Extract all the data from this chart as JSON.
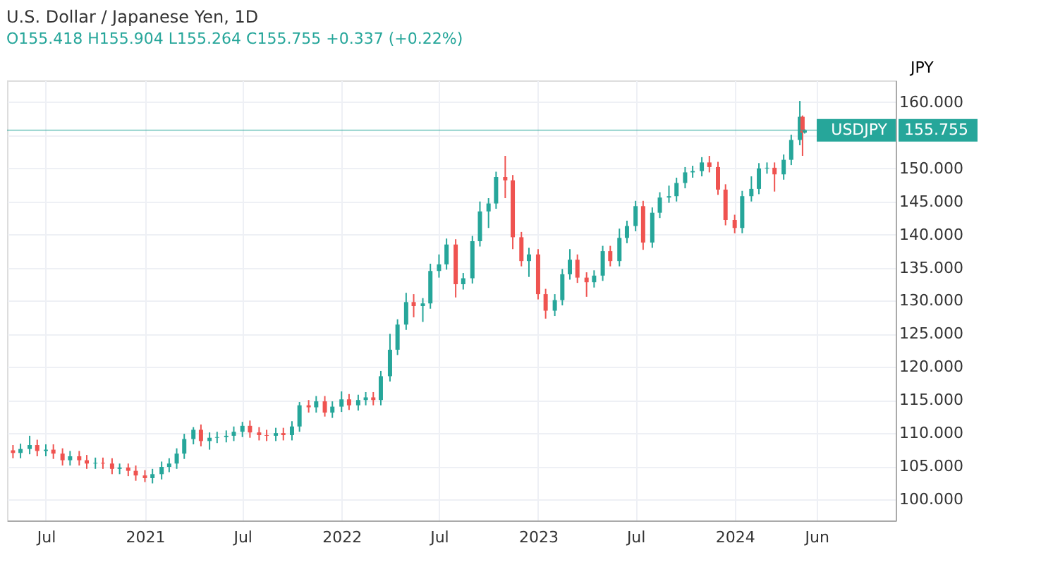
{
  "chart_data": {
    "type": "candlestick",
    "title": "U.S. Dollar / Japanese Yen, 1D",
    "subtitle": "O155.418  H155.904  L155.264  C155.755  +0.337 (+0.22%)",
    "ylabel": "JPY",
    "x": [
      "2020-05-01",
      "2020-05-15",
      "2020-06-01",
      "2020-06-15",
      "2020-07-01",
      "2020-07-15",
      "2020-08-01",
      "2020-08-15",
      "2020-09-01",
      "2020-09-15",
      "2020-10-01",
      "2020-10-15",
      "2020-11-01",
      "2020-11-15",
      "2020-12-01",
      "2020-12-15",
      "2021-01-01",
      "2021-01-15",
      "2021-02-01",
      "2021-02-15",
      "2021-03-01",
      "2021-03-15",
      "2021-04-01",
      "2021-04-15",
      "2021-05-01",
      "2021-05-15",
      "2021-06-01",
      "2021-06-15",
      "2021-07-01",
      "2021-07-15",
      "2021-08-01",
      "2021-08-15",
      "2021-09-01",
      "2021-09-15",
      "2021-10-01",
      "2021-10-15",
      "2021-11-01",
      "2021-11-15",
      "2021-12-01",
      "2021-12-15",
      "2022-01-01",
      "2022-01-15",
      "2022-02-01",
      "2022-02-15",
      "2022-03-01",
      "2022-03-15",
      "2022-04-01",
      "2022-04-15",
      "2022-05-01",
      "2022-05-15",
      "2022-06-01",
      "2022-06-15",
      "2022-07-01",
      "2022-07-15",
      "2022-08-01",
      "2022-08-15",
      "2022-09-01",
      "2022-09-15",
      "2022-10-01",
      "2022-10-15",
      "2022-11-01",
      "2022-11-15",
      "2022-12-01",
      "2022-12-15",
      "2023-01-01",
      "2023-01-15",
      "2023-02-01",
      "2023-02-15",
      "2023-03-01",
      "2023-03-15",
      "2023-04-01",
      "2023-04-15",
      "2023-05-01",
      "2023-05-15",
      "2023-06-01",
      "2023-06-15",
      "2023-07-01",
      "2023-07-15",
      "2023-08-01",
      "2023-08-15",
      "2023-09-01",
      "2023-09-15",
      "2023-10-01",
      "2023-10-15",
      "2023-11-01",
      "2023-11-15",
      "2023-12-01",
      "2023-12-15",
      "2024-01-01",
      "2024-01-15",
      "2024-02-01",
      "2024-02-15",
      "2024-03-01",
      "2024-03-15",
      "2024-04-01",
      "2024-04-15",
      "2024-05-01",
      "2024-05-06",
      "2024-05-10"
    ],
    "ohlc": [
      [
        107.4,
        108.2,
        106.2,
        107.0
      ],
      [
        107.0,
        108.4,
        106.2,
        107.6
      ],
      [
        107.6,
        109.6,
        106.8,
        108.2
      ],
      [
        108.2,
        109.0,
        106.5,
        107.3
      ],
      [
        107.3,
        108.3,
        106.5,
        107.5
      ],
      [
        107.5,
        108.3,
        106.1,
        106.9
      ],
      [
        106.9,
        107.7,
        105.1,
        105.9
      ],
      [
        105.9,
        107.3,
        105.1,
        106.5
      ],
      [
        106.5,
        107.3,
        105.1,
        105.9
      ],
      [
        105.9,
        106.7,
        104.6,
        105.4
      ],
      [
        105.4,
        106.3,
        104.6,
        105.5
      ],
      [
        105.5,
        106.3,
        104.6,
        105.4
      ],
      [
        105.4,
        106.2,
        103.8,
        104.6
      ],
      [
        104.6,
        105.4,
        103.8,
        104.8
      ],
      [
        104.8,
        105.4,
        103.5,
        104.3
      ],
      [
        104.3,
        105.1,
        102.8,
        103.6
      ],
      [
        103.6,
        104.4,
        102.6,
        103.2
      ],
      [
        103.2,
        104.6,
        102.4,
        103.8
      ],
      [
        103.8,
        105.7,
        103.0,
        104.9
      ],
      [
        104.9,
        106.2,
        104.1,
        105.4
      ],
      [
        105.4,
        107.7,
        104.6,
        106.9
      ],
      [
        106.9,
        109.9,
        106.1,
        109.1
      ],
      [
        109.1,
        110.9,
        108.3,
        110.5
      ],
      [
        110.5,
        111.3,
        108.0,
        108.8
      ],
      [
        108.8,
        110.1,
        107.5,
        109.3
      ],
      [
        109.3,
        110.2,
        108.5,
        109.4
      ],
      [
        109.4,
        110.4,
        108.6,
        109.6
      ],
      [
        109.6,
        111.0,
        108.8,
        110.2
      ],
      [
        110.2,
        111.7,
        109.4,
        111.1
      ],
      [
        111.1,
        111.9,
        109.3,
        110.1
      ],
      [
        110.1,
        110.9,
        108.9,
        109.7
      ],
      [
        109.7,
        110.5,
        108.8,
        109.6
      ],
      [
        109.6,
        110.8,
        108.8,
        110.0
      ],
      [
        110.0,
        110.8,
        108.9,
        109.7
      ],
      [
        109.7,
        111.8,
        108.9,
        111.0
      ],
      [
        111.0,
        114.7,
        110.2,
        114.2
      ],
      [
        114.2,
        115.0,
        113.1,
        113.9
      ],
      [
        113.9,
        115.6,
        113.1,
        114.8
      ],
      [
        114.8,
        115.6,
        112.5,
        113.1
      ],
      [
        113.1,
        114.8,
        112.3,
        114.0
      ],
      [
        114.0,
        116.3,
        113.2,
        115.1
      ],
      [
        115.1,
        115.9,
        113.5,
        114.2
      ],
      [
        114.2,
        115.8,
        113.4,
        115.0
      ],
      [
        115.0,
        116.2,
        114.2,
        115.4
      ],
      [
        115.4,
        116.2,
        114.2,
        115.0
      ],
      [
        115.0,
        119.4,
        114.2,
        118.6
      ],
      [
        118.6,
        125.0,
        117.8,
        122.6
      ],
      [
        122.6,
        127.2,
        121.8,
        126.4
      ],
      [
        126.4,
        131.2,
        125.6,
        129.8
      ],
      [
        129.8,
        131.0,
        127.5,
        129.2
      ],
      [
        129.2,
        130.4,
        126.8,
        129.6
      ],
      [
        129.6,
        135.6,
        128.8,
        134.5
      ],
      [
        134.5,
        137.0,
        133.5,
        135.5
      ],
      [
        135.5,
        139.4,
        134.7,
        138.5
      ],
      [
        138.5,
        139.3,
        130.5,
        132.5
      ],
      [
        132.5,
        134.2,
        131.7,
        133.4
      ],
      [
        133.4,
        139.8,
        132.6,
        139.0
      ],
      [
        139.0,
        145.0,
        138.2,
        143.5
      ],
      [
        143.5,
        145.5,
        141.0,
        144.7
      ],
      [
        144.7,
        149.5,
        143.9,
        148.7
      ],
      [
        148.7,
        151.9,
        145.5,
        148.2
      ],
      [
        148.2,
        149.0,
        137.8,
        139.6
      ],
      [
        139.6,
        140.4,
        135.2,
        136.0
      ],
      [
        136.0,
        138.0,
        133.6,
        137.0
      ],
      [
        137.0,
        137.8,
        130.2,
        131.0
      ],
      [
        131.0,
        131.8,
        127.3,
        128.5
      ],
      [
        128.5,
        131.0,
        127.7,
        130.1
      ],
      [
        130.1,
        134.8,
        129.3,
        134.0
      ],
      [
        134.0,
        137.8,
        133.2,
        136.2
      ],
      [
        136.2,
        137.0,
        132.7,
        133.5
      ],
      [
        133.5,
        134.3,
        130.6,
        132.8
      ],
      [
        132.8,
        134.6,
        132.0,
        133.8
      ],
      [
        133.8,
        138.3,
        133.0,
        137.5
      ],
      [
        137.5,
        138.3,
        135.2,
        136.0
      ],
      [
        136.0,
        140.9,
        135.2,
        139.5
      ],
      [
        139.5,
        142.1,
        138.7,
        141.3
      ],
      [
        141.3,
        145.1,
        140.5,
        144.3
      ],
      [
        144.3,
        145.1,
        137.7,
        138.8
      ],
      [
        138.8,
        144.1,
        138.0,
        143.3
      ],
      [
        143.3,
        146.4,
        142.5,
        145.6
      ],
      [
        145.6,
        147.4,
        144.8,
        145.8
      ],
      [
        145.8,
        148.6,
        145.0,
        147.8
      ],
      [
        147.8,
        150.2,
        147.0,
        149.4
      ],
      [
        149.4,
        150.4,
        148.6,
        149.6
      ],
      [
        149.6,
        151.7,
        148.8,
        150.9
      ],
      [
        150.9,
        151.9,
        149.4,
        150.2
      ],
      [
        150.2,
        151.0,
        146.0,
        146.8
      ],
      [
        146.8,
        147.6,
        141.4,
        142.2
      ],
      [
        142.2,
        143.0,
        140.2,
        141.0
      ],
      [
        141.0,
        146.6,
        140.2,
        145.8
      ],
      [
        145.8,
        148.8,
        145.0,
        146.9
      ],
      [
        146.9,
        150.8,
        146.1,
        150.0
      ],
      [
        150.0,
        150.9,
        149.2,
        150.1
      ],
      [
        150.1,
        150.9,
        146.5,
        149.1
      ],
      [
        149.1,
        152.1,
        148.3,
        151.3
      ],
      [
        151.3,
        155.1,
        150.5,
        154.3
      ],
      [
        154.3,
        160.2,
        153.5,
        157.8
      ],
      [
        157.8,
        158.0,
        151.9,
        155.4
      ],
      [
        155.418,
        155.904,
        155.264,
        155.755
      ]
    ],
    "xlim": [
      "2020-04-20",
      "2024-10-26"
    ],
    "xticks": [
      {
        "value": "2020-07-01",
        "label": "Jul"
      },
      {
        "value": "2021-01-01",
        "label": "2021"
      },
      {
        "value": "2021-07-01",
        "label": "Jul"
      },
      {
        "value": "2022-01-01",
        "label": "2022"
      },
      {
        "value": "2022-07-01",
        "label": "Jul"
      },
      {
        "value": "2023-01-01",
        "label": "2023"
      },
      {
        "value": "2023-07-01",
        "label": "Jul"
      },
      {
        "value": "2024-01-01",
        "label": "2024"
      },
      {
        "value": "2024-06-01",
        "label": "Jun"
      }
    ],
    "ylim": [
      96.8,
      163.3
    ],
    "yticks": [
      {
        "value": 100,
        "label": "100.000"
      },
      {
        "value": 105,
        "label": "105.000"
      },
      {
        "value": 110,
        "label": "110.000"
      },
      {
        "value": 115,
        "label": "115.000"
      },
      {
        "value": 120,
        "label": "120.000"
      },
      {
        "value": 125,
        "label": "125.000"
      },
      {
        "value": 130,
        "label": "130.000"
      },
      {
        "value": 135,
        "label": "135.000"
      },
      {
        "value": 140,
        "label": "140.000"
      },
      {
        "value": 145,
        "label": "145.000"
      },
      {
        "value": 150,
        "label": "150.000"
      },
      {
        "value": 155,
        "label": null
      },
      {
        "value": 160,
        "label": "160.000"
      }
    ],
    "ref_lines": [
      {
        "axis": "y",
        "value": 155.755,
        "label": "USDJPY",
        "color": "#26a69a"
      }
    ],
    "annotations": [
      "155.755"
    ],
    "grid": true
  }
}
